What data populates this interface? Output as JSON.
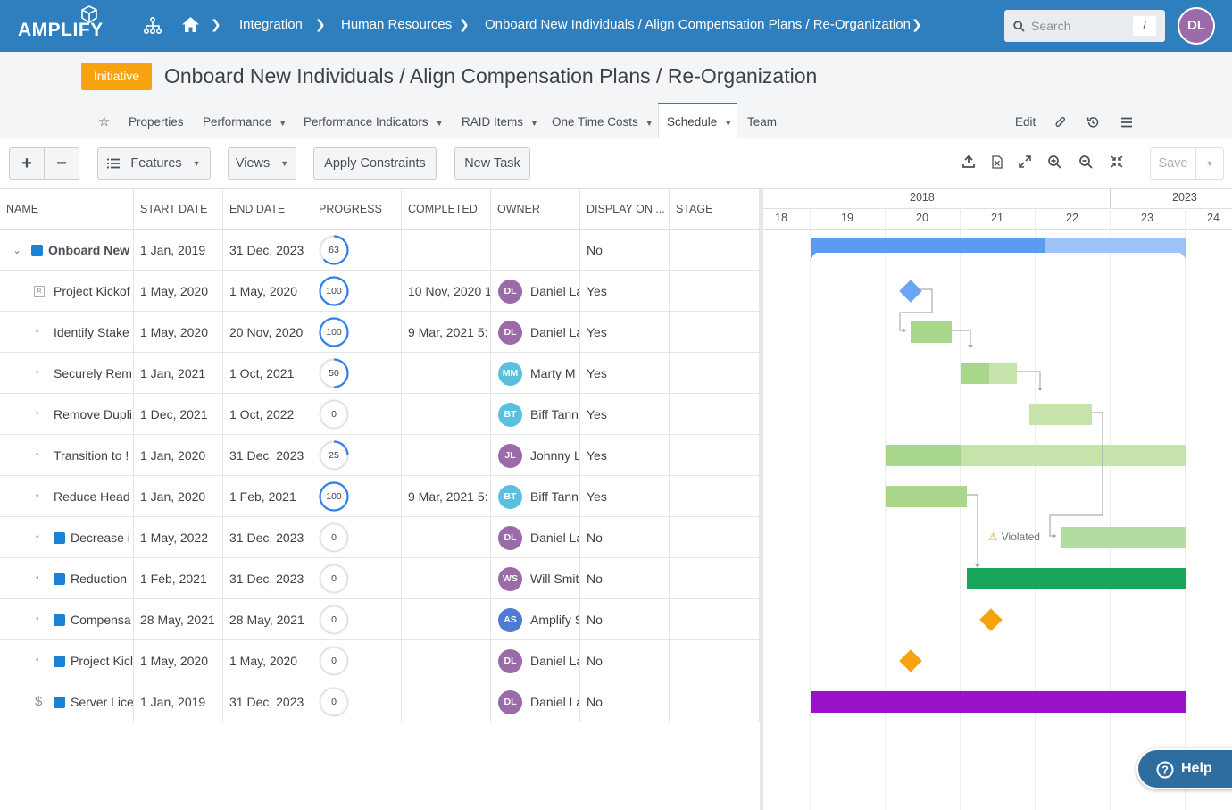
{
  "app": {
    "logo_text": "AMPLIFY"
  },
  "topbar": {
    "breadcrumbs": [
      "Integration",
      "Human Resources",
      "Onboard New Individuals / Align Compensation Plans / Re-Organization"
    ],
    "search_placeholder": "Search",
    "search_shortcut": "/",
    "user_initials": "DL"
  },
  "header": {
    "badge": "Initiative",
    "title": "Onboard New Individuals / Align Compensation Plans / Re-Organization",
    "tabs": [
      "Properties",
      "Performance",
      "Performance Indicators",
      "RAID Items",
      "One Time Costs",
      "Schedule",
      "Team"
    ],
    "active_tab": "Schedule",
    "edit_label": "Edit"
  },
  "toolbar": {
    "expand": "+",
    "collapse": "−",
    "features": "Features",
    "views": "Views",
    "apply_constraints": "Apply Constraints",
    "new_task": "New Task",
    "save": "Save"
  },
  "grid": {
    "columns": [
      "NAME",
      "START DATE",
      "END DATE",
      "PROGRESS",
      "COMPLETED",
      "OWNER",
      "DISPLAY ON ...",
      "STAGE"
    ],
    "rows": [
      {
        "name": "Onboard New",
        "start": "1 Jan, 2019",
        "end": "31 Dec, 2023",
        "progress": "63",
        "completed": "",
        "owner": "",
        "initials": "",
        "display": "No",
        "stage": ""
      },
      {
        "name": "Project Kickof",
        "start": "1 May, 2020",
        "end": "1 May, 2020",
        "progress": "100",
        "completed": "10 Nov, 2020 1",
        "owner": "Daniel La",
        "initials": "DL",
        "display": "Yes",
        "stage": ""
      },
      {
        "name": "Identify Stake",
        "start": "1 May, 2020",
        "end": "20 Nov, 2020",
        "progress": "100",
        "completed": "9 Mar, 2021 5:",
        "owner": "Daniel La",
        "initials": "DL",
        "display": "Yes",
        "stage": ""
      },
      {
        "name": "Securely Rem",
        "start": "1 Jan, 2021",
        "end": "1 Oct, 2021",
        "progress": "50",
        "completed": "",
        "owner": "Marty M",
        "initials": "MM",
        "display": "Yes",
        "stage": ""
      },
      {
        "name": "Remove Dupli",
        "start": "1 Dec, 2021",
        "end": "1 Oct, 2022",
        "progress": "0",
        "completed": "",
        "owner": "Biff Tann",
        "initials": "BT",
        "display": "Yes",
        "stage": ""
      },
      {
        "name": "Transition to !",
        "start": "1 Jan, 2020",
        "end": "31 Dec, 2023",
        "progress": "25",
        "completed": "",
        "owner": "Johnny L",
        "initials": "JL",
        "display": "Yes",
        "stage": ""
      },
      {
        "name": "Reduce Head",
        "start": "1 Jan, 2020",
        "end": "1 Feb, 2021",
        "progress": "100",
        "completed": "9 Mar, 2021 5:",
        "owner": "Biff Tann",
        "initials": "BT",
        "display": "Yes",
        "stage": ""
      },
      {
        "name": "Decrease i",
        "start": "1 May, 2022",
        "end": "31 Dec, 2023",
        "progress": "0",
        "completed": "",
        "owner": "Daniel La",
        "initials": "DL",
        "display": "No",
        "stage": ""
      },
      {
        "name": "Reduction",
        "start": "1 Feb, 2021",
        "end": "31 Dec, 2023",
        "progress": "0",
        "completed": "",
        "owner": "Will Smit",
        "initials": "WS",
        "display": "No",
        "stage": ""
      },
      {
        "name": "Compensa",
        "start": "28 May, 2021",
        "end": "28 May, 2021",
        "progress": "0",
        "completed": "",
        "owner": "Amplify S",
        "initials": "AS",
        "display": "No",
        "stage": ""
      },
      {
        "name": "Project Kicl",
        "start": "1 May, 2020",
        "end": "1 May, 2020",
        "progress": "0",
        "completed": "",
        "owner": "Daniel La",
        "initials": "DL",
        "display": "No",
        "stage": ""
      },
      {
        "name": "Server Lice",
        "start": "1 Jan, 2019",
        "end": "31 Dec, 2023",
        "progress": "0",
        "completed": "",
        "owner": "Daniel La",
        "initials": "DL",
        "display": "No",
        "stage": ""
      }
    ]
  },
  "gantt": {
    "years": [
      "2018",
      "2023"
    ],
    "ticks": [
      "18",
      "19",
      "20",
      "21",
      "22",
      "23",
      "24"
    ],
    "violated_label": "Violated"
  },
  "help_label": "Help",
  "colors": {
    "accent": "#2f7fbf",
    "badge": "#f7a20f",
    "summary_bar": "#5b9cf2",
    "task_done": "#a8d68a",
    "task_pending": "#c6e3ac",
    "dark_green": "#17a65a",
    "milestone_orange": "#f7a20f",
    "purple": "#9b13c8"
  }
}
